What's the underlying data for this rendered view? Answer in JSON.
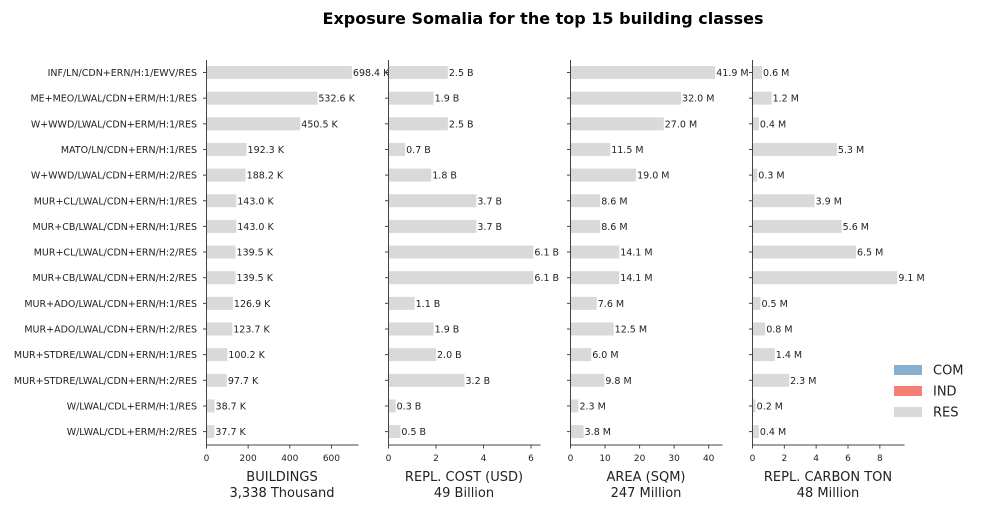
{
  "chart_data": {
    "type": "bar",
    "title": "Exposure Somalia for the top 15 building classes",
    "categories": [
      "INF/LN/CDN+ERN/H:1/EWV/RES",
      "ME+MEO/LWAL/CDN+ERM/H:1/RES",
      "W+WWD/LWAL/CDN+ERM/H:1/RES",
      "MATO/LN/CDN+ERN/H:1/RES",
      "W+WWD/LWAL/CDN+ERM/H:2/RES",
      "MUR+CL/LWAL/CDN+ERN/H:1/RES",
      "MUR+CB/LWAL/CDN+ERN/H:1/RES",
      "MUR+CL/LWAL/CDN+ERN/H:2/RES",
      "MUR+CB/LWAL/CDN+ERN/H:2/RES",
      "MUR+ADO/LWAL/CDN+ERN/H:1/RES",
      "MUR+ADO/LWAL/CDN+ERN/H:2/RES",
      "MUR+STDRE/LWAL/CDN+ERN/H:1/RES",
      "MUR+STDRE/LWAL/CDN+ERN/H:2/RES",
      "W/LWAL/CDL+ERM/H:1/RES",
      "W/LWAL/CDL+ERM/H:2/RES"
    ],
    "panels": [
      {
        "xlabel": "BUILDINGS",
        "total": "3,338 Thousand",
        "xlim": [
          0,
          730
        ],
        "xticks": [
          0,
          200,
          400,
          600
        ],
        "xtick_labels": [
          "0",
          "200",
          "400",
          "600"
        ],
        "values": [
          698.4,
          532.6,
          450.5,
          192.3,
          188.2,
          143.0,
          143.0,
          139.5,
          139.5,
          126.9,
          123.7,
          100.2,
          97.7,
          38.7,
          37.7
        ],
        "labels": [
          "698.4 K",
          "532.6 K",
          "450.5 K",
          "192.3 K",
          "188.2 K",
          "143.0 K",
          "143.0 K",
          "139.5 K",
          "139.5 K",
          "126.9 K",
          "123.7 K",
          "100.2 K",
          "97.7 K",
          "38.7 K",
          "37.7 K"
        ]
      },
      {
        "xlabel": "REPL. COST (USD)",
        "total": "49 Billion",
        "xlim": [
          0,
          6.4
        ],
        "xticks": [
          0,
          2,
          4,
          6
        ],
        "xtick_labels": [
          "0",
          "2",
          "4",
          "6"
        ],
        "values": [
          2.5,
          1.9,
          2.5,
          0.7,
          1.8,
          3.7,
          3.7,
          6.1,
          6.1,
          1.1,
          1.9,
          2.0,
          3.2,
          0.3,
          0.5
        ],
        "labels": [
          "2.5 B",
          "1.9 B",
          "2.5 B",
          "0.7 B",
          "1.8 B",
          "3.7 B",
          "3.7 B",
          "6.1 B",
          "6.1 B",
          "1.1 B",
          "1.9 B",
          "2.0 B",
          "3.2 B",
          "0.3 B",
          "0.5 B"
        ]
      },
      {
        "xlabel": "AREA (SQM)",
        "total": "247 Million",
        "xlim": [
          0,
          44
        ],
        "xticks": [
          0,
          10,
          20,
          30,
          40
        ],
        "xtick_labels": [
          "0",
          "10",
          "20",
          "30",
          "40"
        ],
        "values": [
          41.9,
          32.0,
          27.0,
          11.5,
          19.0,
          8.6,
          8.6,
          14.1,
          14.1,
          7.6,
          12.5,
          6.0,
          9.8,
          2.3,
          3.8
        ],
        "labels": [
          "41.9 M",
          "32.0 M",
          "27.0 M",
          "11.5 M",
          "19.0 M",
          "8.6 M",
          "8.6 M",
          "14.1 M",
          "14.1 M",
          "7.6 M",
          "12.5 M",
          "6.0 M",
          "9.8 M",
          "2.3 M",
          "3.8 M"
        ]
      },
      {
        "xlabel": "REPL. CARBON TON",
        "total": "48 Million",
        "xlim": [
          0,
          9.55
        ],
        "xticks": [
          0,
          2,
          4,
          6,
          8
        ],
        "xtick_labels": [
          "0",
          "2",
          "4",
          "6",
          "8"
        ],
        "values": [
          0.6,
          1.2,
          0.4,
          5.3,
          0.3,
          3.9,
          5.6,
          6.5,
          9.1,
          0.5,
          0.8,
          1.4,
          2.3,
          0.2,
          0.4
        ],
        "labels": [
          "0.6 M",
          "1.2 M",
          "0.4 M",
          "5.3 M",
          "0.3 M",
          "3.9 M",
          "5.6 M",
          "6.5 M",
          "9.1 M",
          "0.5 M",
          "0.8 M",
          "1.4 M",
          "2.3 M",
          "0.2 M",
          "0.4 M"
        ]
      }
    ],
    "legend": {
      "position": "lower-right",
      "entries": [
        {
          "label": "COM",
          "color": "#86afd0"
        },
        {
          "label": "IND",
          "color": "#f47f72"
        },
        {
          "label": "RES",
          "color": "#d9d9d9"
        }
      ]
    },
    "bar_color": "#d9d9d9",
    "grid": false
  }
}
